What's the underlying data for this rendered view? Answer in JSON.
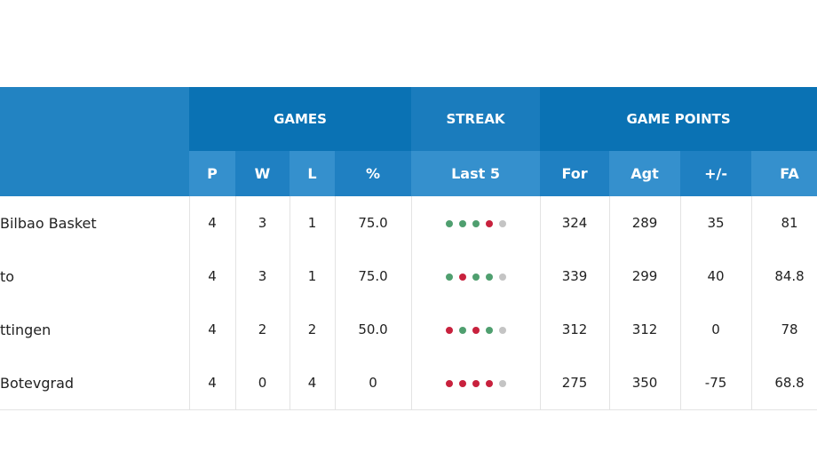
{
  "colors": {
    "win": "#4f9f6f",
    "loss": "#c8213d",
    "none": "#c4c4c4"
  },
  "groups": {
    "games": "GAMES",
    "streak": "STREAK",
    "game_points": "GAME POINTS"
  },
  "columns": {
    "p": "P",
    "w": "W",
    "l": "L",
    "pct": "%",
    "last5": "Last 5",
    "for": "For",
    "agt": "Agt",
    "diff": "+/-",
    "fa": "FA"
  },
  "rows": [
    {
      "team": "Bilbao Basket",
      "p": "4",
      "w": "3",
      "l": "1",
      "pct": "75.0",
      "streak": [
        "W",
        "W",
        "W",
        "L",
        "-"
      ],
      "for": "324",
      "agt": "289",
      "diff": "35",
      "fa": "81"
    },
    {
      "team": "to",
      "p": "4",
      "w": "3",
      "l": "1",
      "pct": "75.0",
      "streak": [
        "W",
        "L",
        "W",
        "W",
        "-"
      ],
      "for": "339",
      "agt": "299",
      "diff": "40",
      "fa": "84.8"
    },
    {
      "team": "ttingen",
      "p": "4",
      "w": "2",
      "l": "2",
      "pct": "50.0",
      "streak": [
        "L",
        "W",
        "L",
        "W",
        "-"
      ],
      "for": "312",
      "agt": "312",
      "diff": "0",
      "fa": "78"
    },
    {
      "team": " Botevgrad",
      "p": "4",
      "w": "0",
      "l": "4",
      "pct": "0",
      "streak": [
        "L",
        "L",
        "L",
        "L",
        "-"
      ],
      "for": "275",
      "agt": "350",
      "diff": "-75",
      "fa": "68.8"
    }
  ]
}
